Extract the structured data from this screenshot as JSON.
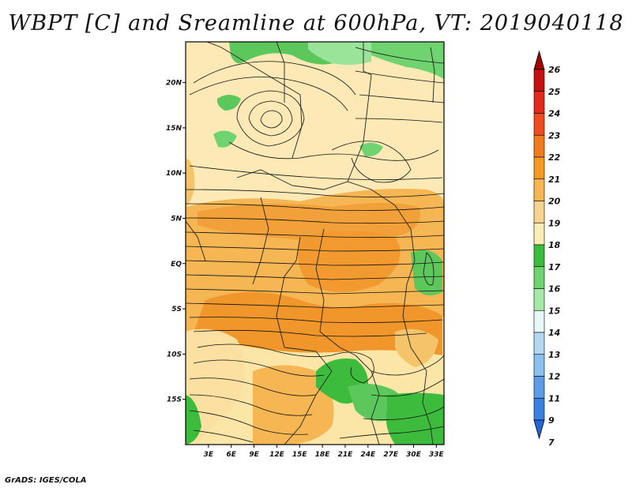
{
  "title": "WBPT [C] and Sreamline at 600hPa, VT: 2019040118",
  "footer": "GrADS: IGES/COLA",
  "map": {
    "lat_labels": [
      "20N",
      "15N",
      "10N",
      "5N",
      "EQ",
      "5S",
      "10S",
      "15S"
    ],
    "lat_values": [
      20,
      15,
      10,
      5,
      0,
      -5,
      -10,
      -15
    ],
    "lon_labels": [
      "3E",
      "6E",
      "9E",
      "12E",
      "15E",
      "18E",
      "21E",
      "24E",
      "27E",
      "30E",
      "33E"
    ],
    "lon_values": [
      3,
      6,
      9,
      12,
      15,
      18,
      21,
      24,
      27,
      30,
      33
    ],
    "lon_range": [
      0,
      34
    ],
    "lat_range": [
      -20,
      24.5
    ]
  },
  "colorbar": {
    "labels": [
      "26",
      "25",
      "24",
      "23",
      "22",
      "21",
      "20",
      "19",
      "18",
      "17",
      "16",
      "15",
      "14",
      "13",
      "12",
      "11",
      "9",
      "7"
    ],
    "colors": [
      "#a00000",
      "#c41010",
      "#e02a1a",
      "#ef4c1f",
      "#f27a1f",
      "#f59a25",
      "#f5b653",
      "#f7d590",
      "#fbecb8",
      "#3dbb3d",
      "#6fd36f",
      "#a6e8a6",
      "#e8f8f8",
      "#b4d8f4",
      "#8cc1ee",
      "#5e9ce8",
      "#3a80e0",
      "#2466d8"
    ]
  }
}
